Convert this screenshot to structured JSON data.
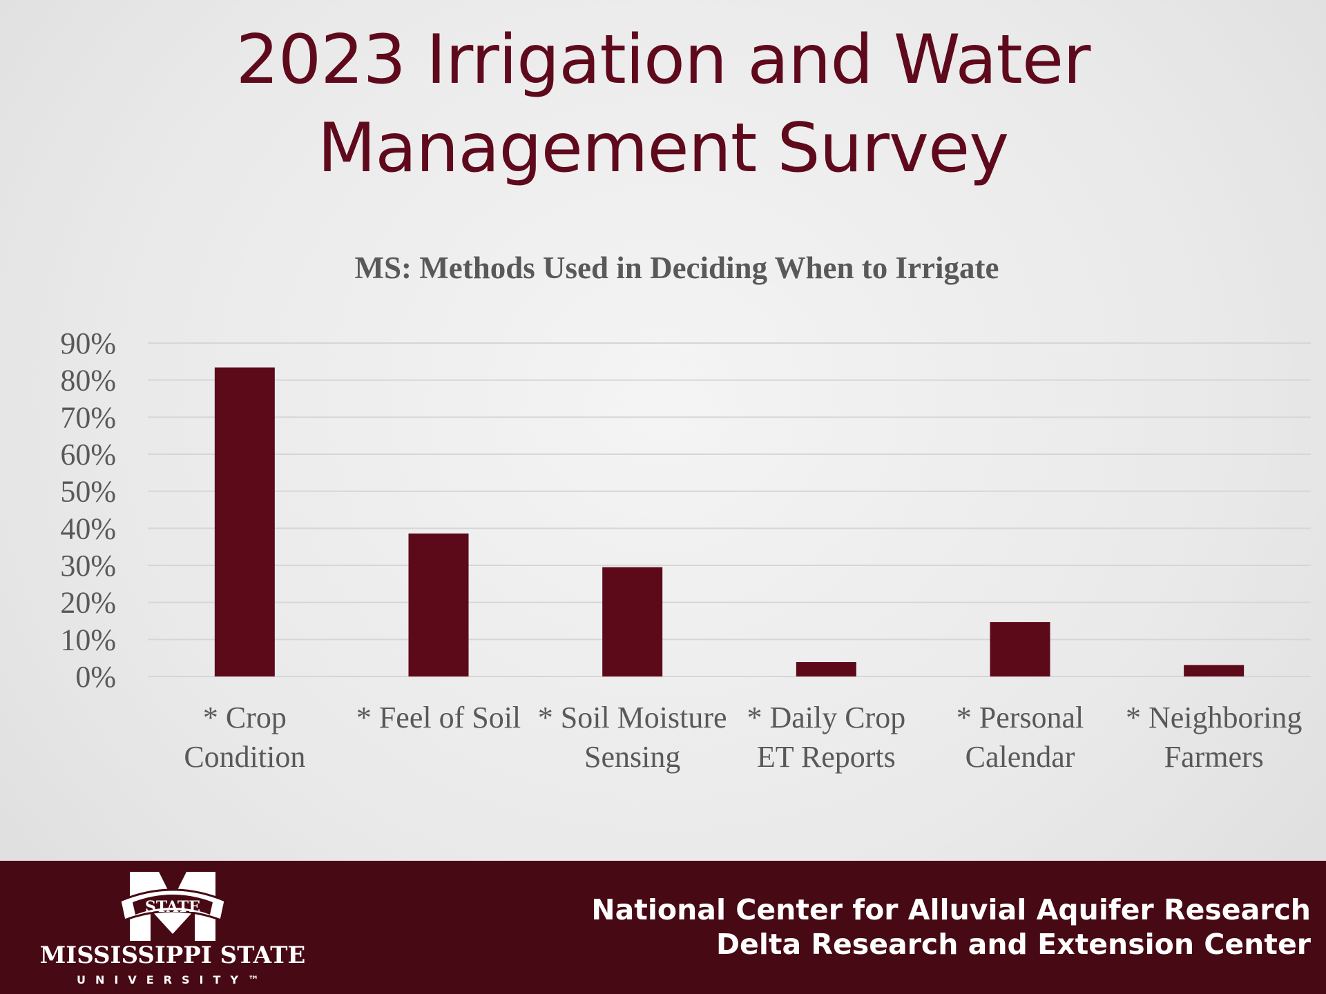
{
  "slide": {
    "title_line1": "2023 Irrigation and Water",
    "title_line2": "Management Survey"
  },
  "chart_data": {
    "type": "bar",
    "title": "MS: Methods Used in Deciding When to Irrigate",
    "categories": [
      [
        "* Crop",
        "Condition"
      ],
      [
        "* Feel of Soil"
      ],
      [
        "* Soil Moisture",
        "Sensing"
      ],
      [
        "* Daily Crop",
        "ET Reports"
      ],
      [
        "* Personal",
        "Calendar"
      ],
      [
        "* Neighboring",
        "Farmers"
      ]
    ],
    "values": [
      83.4,
      38.6,
      29.5,
      3.9,
      14.7,
      3.1
    ],
    "ylim": [
      0,
      90
    ],
    "yticks": [
      "0%",
      "10%",
      "20%",
      "30%",
      "40%",
      "50%",
      "60%",
      "70%",
      "80%",
      "90%"
    ],
    "xlabel": "",
    "ylabel": "",
    "grid": true,
    "bar_color": "#5c0919"
  },
  "footer": {
    "line1": "National Center for Alluvial Aquifer Research",
    "line2": "Delta Research and Extension Center",
    "logo_text": "MISSISSIPPI STATE",
    "logo_sub": "UNIVERSITY™",
    "logo_banner": "STATE"
  }
}
